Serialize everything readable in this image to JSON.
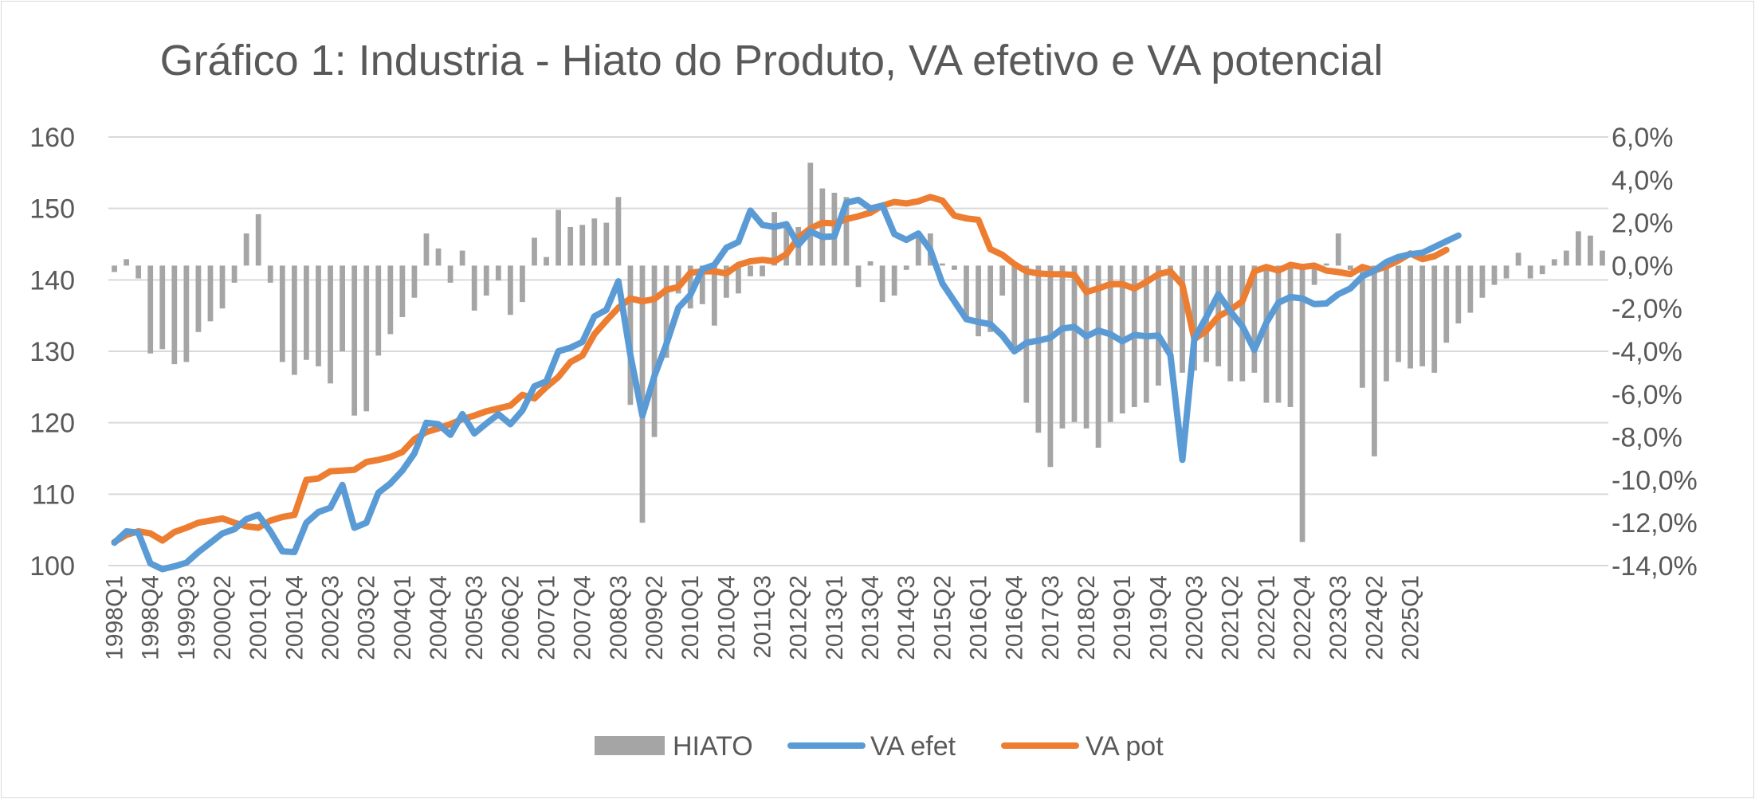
{
  "chart_data": {
    "type": "bar+line",
    "title": "Gráfico 1: Industria - Hiato do Produto, VA efetivo e VA potencial",
    "x_tick_labels": [
      "1998Q1",
      "1998Q4",
      "1999Q3",
      "2000Q2",
      "2001Q1",
      "2001Q4",
      "2002Q3",
      "2003Q2",
      "2004Q1",
      "2004Q4",
      "2005Q3",
      "2006Q2",
      "2007Q1",
      "2007Q4",
      "2008Q3",
      "2009Q2",
      "2010Q1",
      "2010Q4",
      "2011Q3",
      "2012Q2",
      "2013Q1",
      "2013Q4",
      "2014Q3",
      "2015Q2",
      "2016Q1",
      "2016Q4",
      "2017Q3",
      "2018Q2",
      "2019Q1",
      "2019Q4",
      "2020Q3",
      "2021Q2",
      "2022Q1",
      "2022Q4",
      "2023Q3",
      "2024Q2",
      "2025Q1"
    ],
    "left_axis": {
      "range": [
        100,
        160
      ],
      "ticks": [
        100,
        110,
        120,
        130,
        140,
        150,
        160
      ],
      "labels": [
        "100",
        "110",
        "120",
        "130",
        "140",
        "150",
        "160"
      ]
    },
    "right_axis": {
      "range": [
        -14,
        6
      ],
      "ticks": [
        6,
        4,
        2,
        0,
        -2,
        -4,
        -6,
        -8,
        -10,
        -12,
        -14
      ],
      "labels": [
        "6,0%",
        "4,0%",
        "2,0%",
        "0,0%",
        "-2,0%",
        "-4,0%",
        "-6,0%",
        "-8,0%",
        "-10,0%",
        "-12,0%",
        "-14,0%"
      ]
    },
    "gridlines": true,
    "legend_position": "bottom",
    "series": [
      {
        "name": "HIATO",
        "type": "bar",
        "axis": "right",
        "color": "#a5a5a5",
        "values": [
          -0.3,
          0.3,
          -0.6,
          -4.1,
          -3.9,
          -4.6,
          -4.5,
          -3.1,
          -2.6,
          -2.0,
          -0.8,
          1.5,
          2.4,
          -0.8,
          -4.5,
          -5.1,
          -4.4,
          -4.7,
          -5.5,
          -4.0,
          -7.0,
          -6.8,
          -4.2,
          -3.2,
          -2.4,
          -1.5,
          1.5,
          0.8,
          -0.8,
          0.7,
          -2.1,
          -1.4,
          -0.7,
          -2.3,
          -1.7,
          1.3,
          0.4,
          2.6,
          1.8,
          1.9,
          2.2,
          2.0,
          3.2,
          -6.5,
          -12.0,
          -8.0,
          -4.3,
          -1.3,
          -2.0,
          -1.8,
          -2.8,
          -1.5,
          -1.3,
          -0.5,
          -0.5,
          2.5,
          2.0,
          1.8,
          4.8,
          3.6,
          3.4,
          3.2,
          -1.0,
          0.2,
          -1.7,
          -1.4,
          -0.2,
          1.3,
          1.5,
          0.1,
          -0.2,
          -2.6,
          -3.3,
          -3.1,
          -1.4,
          -4.0,
          -6.4,
          -7.8,
          -9.4,
          -7.6,
          -7.3,
          -7.6,
          -8.5,
          -7.3,
          -6.9,
          -6.6,
          -6.4,
          -5.6,
          -4.4,
          -5.0,
          -4.9,
          -4.5,
          -4.7,
          -5.4,
          -5.4,
          -5.0,
          -6.4,
          -6.4,
          -6.6,
          -12.9,
          -0.9,
          0.1,
          1.5,
          -0.2,
          -5.7,
          -8.9,
          -5.4,
          -4.5,
          -4.8,
          -4.7,
          -5.0,
          -3.6,
          -2.7,
          -2.2,
          -1.5,
          -0.9,
          -0.6,
          0.6,
          -0.6,
          -0.4,
          0.3,
          0.7,
          1.6,
          1.4,
          0.7
        ]
      },
      {
        "name": "VA efet",
        "type": "line",
        "axis": "left",
        "color": "#5b9bd5",
        "values": [
          103.2,
          104.8,
          104.6,
          100.3,
          99.5,
          99.9,
          100.4,
          101.9,
          103.2,
          104.5,
          105.1,
          106.5,
          107.1,
          104.8,
          102.0,
          101.9,
          106.0,
          107.5,
          108.1,
          111.3,
          105.3,
          106.0,
          110.2,
          111.5,
          113.3,
          115.7,
          120.0,
          119.8,
          118.3,
          121.2,
          118.5,
          119.9,
          121.2,
          119.8,
          121.7,
          125.1,
          125.8,
          130.0,
          130.5,
          131.3,
          134.9,
          135.8,
          139.8,
          129.5,
          121.0,
          126.5,
          131.0,
          136.1,
          137.9,
          141.5,
          142.1,
          144.5,
          145.3,
          149.7,
          147.7,
          147.4,
          147.8,
          144.9,
          146.8,
          146.0,
          146.1,
          150.8,
          151.2,
          150.0,
          150.4,
          146.4,
          145.6,
          146.5,
          144.2,
          139.5,
          137.0,
          134.5,
          134.1,
          133.8,
          132.2,
          130.0,
          131.2,
          131.5,
          131.9,
          133.2,
          133.4,
          132.1,
          132.9,
          132.4,
          131.4,
          132.3,
          132.1,
          132.2,
          129.5,
          114.8,
          131.8,
          134.8,
          138.0,
          135.6,
          133.5,
          130.2,
          134.0,
          136.8,
          137.6,
          137.4,
          136.6,
          136.7,
          138.0,
          138.8,
          140.5,
          141.3,
          142.5,
          143.2,
          143.6,
          143.8,
          144.6,
          145.4,
          146.2
        ]
      },
      {
        "name": "VA pot",
        "type": "line",
        "axis": "left",
        "color": "#ed7d31",
        "values": [
          103.3,
          104.3,
          104.8,
          104.5,
          103.5,
          104.7,
          105.3,
          106.0,
          106.3,
          106.6,
          106.0,
          105.5,
          105.3,
          106.3,
          106.8,
          107.1,
          112.0,
          112.2,
          113.2,
          113.3,
          113.4,
          114.5,
          114.8,
          115.2,
          115.9,
          117.7,
          118.7,
          119.2,
          119.8,
          120.5,
          121.0,
          121.6,
          122.0,
          122.4,
          123.9,
          123.4,
          125.0,
          126.4,
          128.5,
          129.4,
          132.4,
          134.3,
          136.1,
          137.4,
          137.0,
          137.3,
          138.6,
          139.0,
          141.0,
          141.2,
          141.2,
          140.9,
          142.1,
          142.6,
          142.8,
          142.6,
          143.6,
          145.9,
          147.2,
          148.0,
          147.9,
          148.5,
          148.9,
          149.4,
          150.4,
          150.9,
          150.7,
          151.0,
          151.6,
          151.1,
          149.0,
          148.6,
          148.4,
          144.3,
          143.5,
          142.2,
          141.2,
          140.9,
          140.8,
          140.8,
          140.7,
          138.3,
          138.8,
          139.4,
          139.4,
          138.8,
          139.7,
          140.8,
          141.2,
          139.3,
          131.7,
          132.9,
          134.9,
          135.8,
          137.0,
          141.2,
          141.8,
          141.3,
          142.1,
          141.8,
          142.0,
          141.3,
          141.1,
          140.8,
          141.8,
          141.3,
          141.9,
          142.7,
          143.7,
          142.9,
          143.3,
          144.2
        ]
      }
    ]
  },
  "legend": [
    {
      "name": "HIATO",
      "color": "#a5a5a5",
      "kind": "bar"
    },
    {
      "name": "VA efet",
      "color": "#5b9bd5",
      "kind": "line"
    },
    {
      "name": "VA pot",
      "color": "#ed7d31",
      "kind": "line"
    }
  ]
}
